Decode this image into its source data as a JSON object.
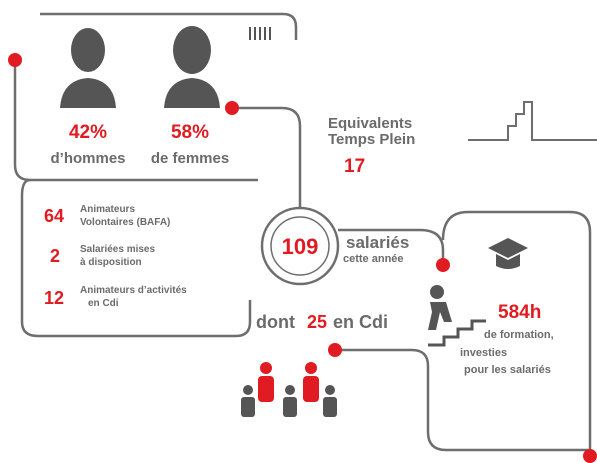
{
  "gender": {
    "men": {
      "value": "42%",
      "label": "d’hommes"
    },
    "women": {
      "value": "58%",
      "label": "de femmes"
    }
  },
  "fte": {
    "label_lines": [
      "Equivalents",
      "Temps Plein"
    ],
    "value": "17"
  },
  "breakdown": [
    {
      "value": "64",
      "label_lines": [
        "Animateurs",
        "Volontaires (BAFA)"
      ]
    },
    {
      "value": "2",
      "label_lines": [
        "Salariées mises",
        "à disposition"
      ]
    },
    {
      "value": "12",
      "label_lines": [
        "Animateurs d’activités",
        "en Cdi"
      ]
    }
  ],
  "total": {
    "value": "109",
    "label": "salariés",
    "sublabel": "cette année"
  },
  "cdi": {
    "prefix": "dont",
    "value": "25",
    "suffix": "en Cdi"
  },
  "training": {
    "value": "584h",
    "lines": [
      "de formation,",
      "investies",
      "pour les salariés"
    ]
  }
}
